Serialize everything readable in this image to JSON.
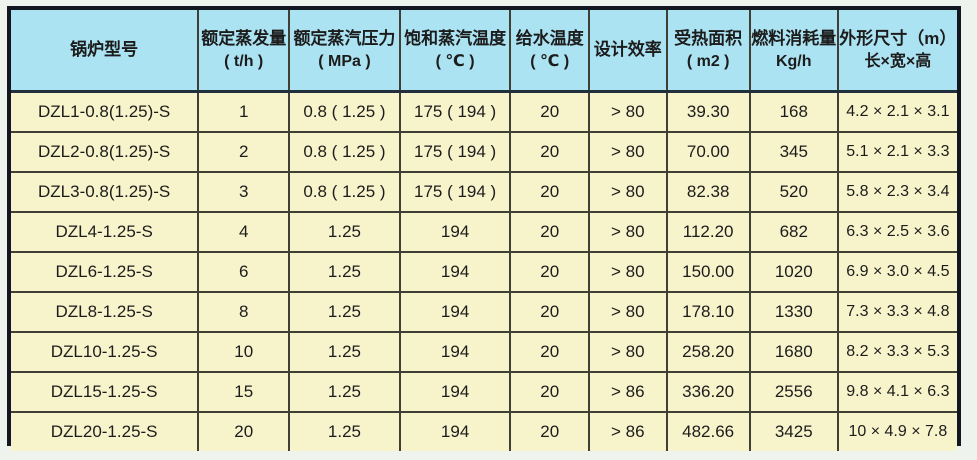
{
  "colors": {
    "page_background": "#eef3ed",
    "outer_border": "#131722",
    "header_background": "#ace3f2",
    "body_background": "#f7f3cb",
    "grid_line": "#3f3f36",
    "header_divider": "#22303e",
    "text": "#1c1c1c"
  },
  "table": {
    "columns": [
      {
        "id": "model",
        "title": "锅炉型号",
        "unit": ""
      },
      {
        "id": "rated-evaporation",
        "title": "额定蒸发量",
        "unit": "( t/h )"
      },
      {
        "id": "rated-steam-pressure",
        "title": "额定蒸汽压力",
        "unit": "( MPa )"
      },
      {
        "id": "saturated-steam-temp",
        "title": "饱和蒸汽温度",
        "unit": "( ℃ )"
      },
      {
        "id": "feed-water-temp",
        "title": "给水温度",
        "unit": "( ℃ )"
      },
      {
        "id": "design-efficiency",
        "title": "设计效率",
        "unit": ""
      },
      {
        "id": "heating-area",
        "title": "受热面积",
        "unit": "( m2 )"
      },
      {
        "id": "fuel-consumption",
        "title": "燃料消耗量",
        "unit": "Kg/h"
      },
      {
        "id": "dimensions",
        "title": "外形尺寸（m）",
        "unit": "长×宽×高"
      }
    ],
    "rows": [
      [
        "DZL1-0.8(1.25)-S",
        "1",
        "0.8 ( 1.25 )",
        "175 ( 194 )",
        "20",
        "> 80",
        "39.30",
        "168",
        "4.2 × 2.1 × 3.1"
      ],
      [
        "DZL2-0.8(1.25)-S",
        "2",
        "0.8 ( 1.25 )",
        "175 ( 194 )",
        "20",
        "> 80",
        "70.00",
        "345",
        "5.1 × 2.1 × 3.3"
      ],
      [
        "DZL3-0.8(1.25)-S",
        "3",
        "0.8 ( 1.25 )",
        "175 ( 194 )",
        "20",
        "> 80",
        "82.38",
        "520",
        "5.8 × 2.3 × 3.4"
      ],
      [
        "DZL4-1.25-S",
        "4",
        "1.25",
        "194",
        "20",
        "> 80",
        "112.20",
        "682",
        "6.3 × 2.5 × 3.6"
      ],
      [
        "DZL6-1.25-S",
        "6",
        "1.25",
        "194",
        "20",
        "> 80",
        "150.00",
        "1020",
        "6.9 × 3.0 × 4.5"
      ],
      [
        "DZL8-1.25-S",
        "8",
        "1.25",
        "194",
        "20",
        "> 80",
        "178.10",
        "1330",
        "7.3 × 3.3 × 4.8"
      ],
      [
        "DZL10-1.25-S",
        "10",
        "1.25",
        "194",
        "20",
        "> 80",
        "258.20",
        "1680",
        "8.2 × 3.3 × 5.3"
      ],
      [
        "DZL15-1.25-S",
        "15",
        "1.25",
        "194",
        "20",
        "> 86",
        "336.20",
        "2556",
        "9.8 × 4.1 × 6.3"
      ],
      [
        "DZL20-1.25-S",
        "20",
        "1.25",
        "194",
        "20",
        "> 86",
        "482.66",
        "3425",
        "10 × 4.9 × 7.8"
      ]
    ]
  }
}
